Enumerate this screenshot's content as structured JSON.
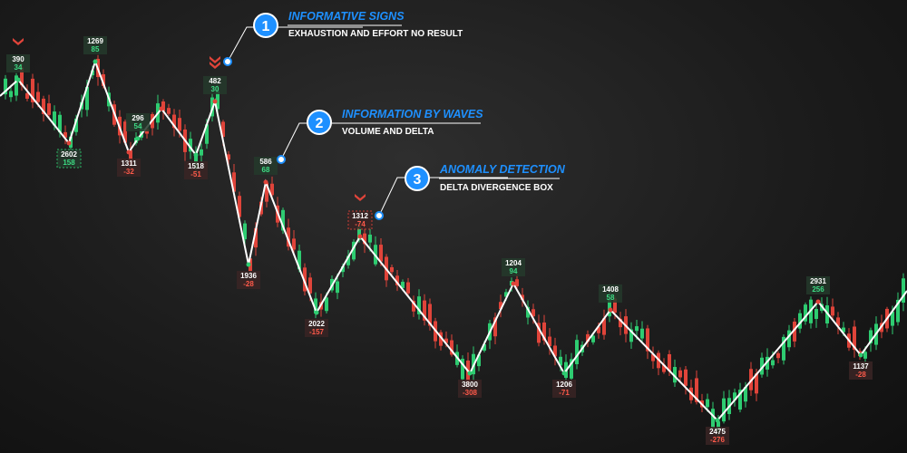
{
  "callouts": [
    {
      "number": "1",
      "title": "INFORMATIVE SIGNS",
      "subtitle": "EXHAUSTION AND EFFORT NO RESULT"
    },
    {
      "number": "2",
      "title": "INFORMATION BY WAVES",
      "subtitle": "VOLUME AND DELTA"
    },
    {
      "number": "3",
      "title": "ANOMALY DETECTION",
      "subtitle": "DELTA DIVERGENCE BOX"
    }
  ],
  "colors": {
    "bull": "#2ecc71",
    "bear": "#e0443a",
    "wave": "#ffffff",
    "accent": "#1e90ff",
    "label_bg": "#243a2c",
    "label_bg_neg": "#3a2424"
  },
  "chart_data": {
    "type": "candlestick-zigzag",
    "wave_labels": [
      {
        "kind": "high",
        "volume": "390",
        "delta": "34"
      },
      {
        "kind": "low",
        "volume": "2602",
        "delta": "158",
        "box": true
      },
      {
        "kind": "high",
        "volume": "1269",
        "delta": "85"
      },
      {
        "kind": "low",
        "volume": "1311",
        "delta": "-32"
      },
      {
        "kind": "high",
        "volume": "296",
        "delta": "54"
      },
      {
        "kind": "low",
        "volume": "1518",
        "delta": "-51"
      },
      {
        "kind": "high",
        "volume": "482",
        "delta": "30",
        "marker": "exhaustion"
      },
      {
        "kind": "low",
        "volume": "1936",
        "delta": "-28"
      },
      {
        "kind": "high",
        "volume": "586",
        "delta": "68"
      },
      {
        "kind": "low",
        "volume": "2022",
        "delta": "-157"
      },
      {
        "kind": "high",
        "volume": "1312",
        "delta": "-74",
        "box": true
      },
      {
        "kind": "low",
        "volume": "3800",
        "delta": "-308"
      },
      {
        "kind": "high",
        "volume": "1204",
        "delta": "94"
      },
      {
        "kind": "low",
        "volume": "1206",
        "delta": "-71"
      },
      {
        "kind": "high",
        "volume": "1408",
        "delta": "58"
      },
      {
        "kind": "low",
        "volume": "2475",
        "delta": "-276"
      },
      {
        "kind": "high",
        "volume": "2931",
        "delta": "256"
      },
      {
        "kind": "low",
        "volume": "1137",
        "delta": "-28"
      }
    ]
  }
}
